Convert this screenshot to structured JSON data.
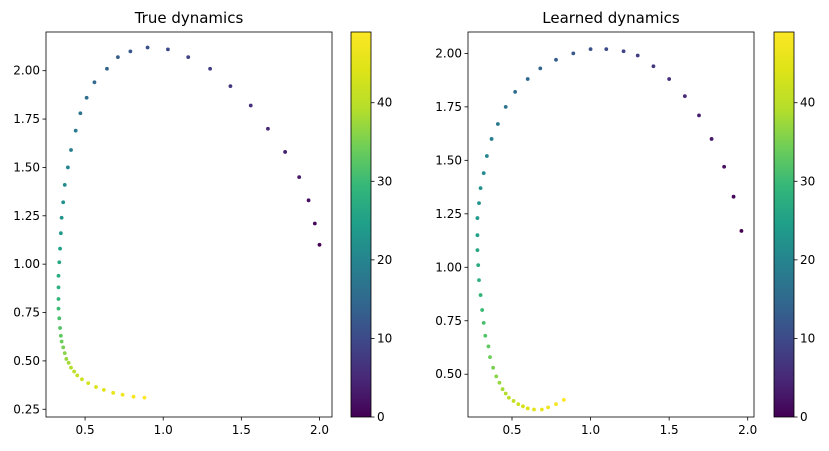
{
  "chart_data": [
    {
      "type": "scatter",
      "title": "True dynamics",
      "xlim": [
        0.25,
        2.08
      ],
      "ylim": [
        0.21,
        2.2
      ],
      "xticks": [
        0.5,
        1.0,
        1.5,
        2.0
      ],
      "xtick_labels": [
        "0.5",
        "1.0",
        "1.5",
        "2.0"
      ],
      "yticks": [
        0.25,
        0.5,
        0.75,
        1.0,
        1.25,
        1.5,
        1.75,
        2.0
      ],
      "ytick_labels": [
        "0.25",
        "0.50",
        "0.75",
        "1.00",
        "1.25",
        "1.50",
        "1.75",
        "2.00"
      ],
      "colorbar": {
        "min": 0,
        "max": 49,
        "ticks": [
          0,
          10,
          20,
          30,
          40
        ],
        "tick_labels": [
          "0",
          "10",
          "20",
          "30",
          "40"
        ],
        "colormap": "viridis"
      },
      "points": {
        "t": [
          0,
          1,
          2,
          3,
          4,
          5,
          6,
          7,
          8,
          9,
          10,
          11,
          12,
          13,
          14,
          15,
          16,
          17,
          18,
          19,
          20,
          21,
          22,
          23,
          24,
          25,
          26,
          27,
          28,
          29,
          30,
          31,
          32,
          33,
          34,
          35,
          36,
          37,
          38,
          39,
          40,
          41,
          42,
          43,
          44,
          45,
          46,
          47,
          48,
          49
        ],
        "x": [
          2.0,
          1.97,
          1.93,
          1.87,
          1.78,
          1.67,
          1.56,
          1.43,
          1.3,
          1.16,
          1.03,
          0.9,
          0.79,
          0.71,
          0.64,
          0.56,
          0.51,
          0.47,
          0.44,
          0.41,
          0.39,
          0.37,
          0.36,
          0.35,
          0.345,
          0.34,
          0.335,
          0.33,
          0.33,
          0.33,
          0.33,
          0.335,
          0.34,
          0.345,
          0.35,
          0.36,
          0.37,
          0.38,
          0.395,
          0.41,
          0.43,
          0.45,
          0.48,
          0.52,
          0.57,
          0.62,
          0.68,
          0.74,
          0.81,
          0.88
        ],
        "y": [
          1.1,
          1.21,
          1.33,
          1.45,
          1.58,
          1.7,
          1.82,
          1.92,
          2.01,
          2.07,
          2.11,
          2.12,
          2.1,
          2.07,
          2.01,
          1.94,
          1.86,
          1.78,
          1.69,
          1.59,
          1.5,
          1.41,
          1.32,
          1.24,
          1.16,
          1.08,
          1.01,
          0.94,
          0.88,
          0.82,
          0.77,
          0.72,
          0.67,
          0.63,
          0.6,
          0.57,
          0.54,
          0.51,
          0.49,
          0.465,
          0.445,
          0.425,
          0.405,
          0.385,
          0.365,
          0.35,
          0.335,
          0.325,
          0.315,
          0.31
        ]
      }
    },
    {
      "type": "scatter",
      "title": "Learned dynamics",
      "xlim": [
        0.22,
        2.04
      ],
      "ylim": [
        0.3,
        2.1
      ],
      "xticks": [
        0.5,
        1.0,
        1.5,
        2.0
      ],
      "xtick_labels": [
        "0.5",
        "1.0",
        "1.5",
        "2.0"
      ],
      "yticks": [
        0.5,
        0.75,
        1.0,
        1.25,
        1.5,
        1.75,
        2.0
      ],
      "ytick_labels": [
        "0.50",
        "0.75",
        "1.00",
        "1.25",
        "1.50",
        "1.75",
        "2.00"
      ],
      "colorbar": {
        "min": 0,
        "max": 49,
        "ticks": [
          0,
          10,
          20,
          30,
          40
        ],
        "tick_labels": [
          "0",
          "10",
          "20",
          "30",
          "40"
        ],
        "colormap": "viridis"
      },
      "points": {
        "t": [
          0,
          1,
          2,
          3,
          4,
          5,
          6,
          7,
          8,
          9,
          10,
          11,
          12,
          13,
          14,
          15,
          16,
          17,
          18,
          19,
          20,
          21,
          22,
          23,
          24,
          25,
          26,
          27,
          28,
          29,
          30,
          31,
          32,
          33,
          34,
          35,
          36,
          37,
          38,
          39,
          40,
          41,
          42,
          43,
          44,
          45,
          46,
          47,
          48,
          49
        ],
        "x": [
          1.96,
          1.91,
          1.85,
          1.77,
          1.69,
          1.6,
          1.5,
          1.4,
          1.3,
          1.21,
          1.1,
          1.0,
          0.89,
          0.78,
          0.68,
          0.6,
          0.52,
          0.46,
          0.41,
          0.37,
          0.34,
          0.32,
          0.3,
          0.29,
          0.28,
          0.28,
          0.28,
          0.285,
          0.29,
          0.3,
          0.31,
          0.32,
          0.33,
          0.35,
          0.36,
          0.38,
          0.4,
          0.42,
          0.44,
          0.46,
          0.48,
          0.51,
          0.54,
          0.57,
          0.6,
          0.64,
          0.69,
          0.73,
          0.78,
          0.83
        ],
        "y": [
          1.17,
          1.33,
          1.47,
          1.6,
          1.71,
          1.8,
          1.88,
          1.94,
          1.99,
          2.01,
          2.02,
          2.02,
          2.0,
          1.97,
          1.93,
          1.88,
          1.82,
          1.75,
          1.67,
          1.6,
          1.52,
          1.44,
          1.37,
          1.3,
          1.23,
          1.15,
          1.08,
          1.01,
          0.94,
          0.87,
          0.8,
          0.74,
          0.68,
          0.63,
          0.58,
          0.53,
          0.49,
          0.46,
          0.43,
          0.41,
          0.39,
          0.375,
          0.36,
          0.35,
          0.34,
          0.335,
          0.335,
          0.345,
          0.36,
          0.38
        ]
      }
    }
  ]
}
